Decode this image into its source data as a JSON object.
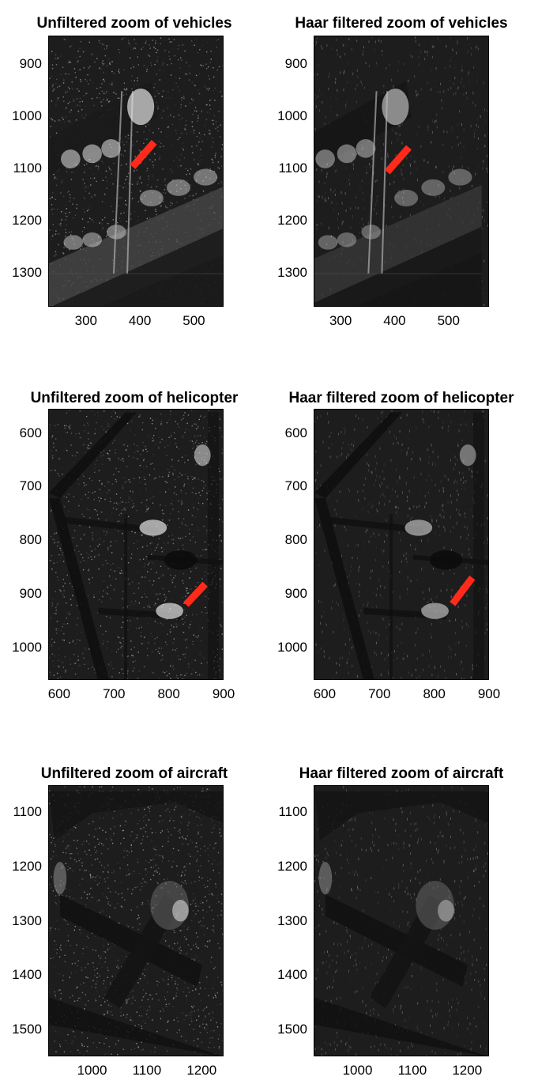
{
  "figure": {
    "panels": [
      {
        "id": "vehicles-unfiltered",
        "title": "Unfiltered zoom of vehicles",
        "filtered": false,
        "scene": "vehicles",
        "x_ticks": [
          "300",
          "400",
          "500"
        ],
        "y_ticks": [
          "900",
          "1000",
          "1100",
          "1200",
          "1300"
        ],
        "x_tick_values": [
          300,
          400,
          500
        ],
        "y_tick_values": [
          900,
          1000,
          1100,
          1200,
          1300
        ],
        "x_range": [
          230,
          555
        ],
        "y_range": [
          845,
          1365
        ],
        "marker": {
          "color": "#ff2a1a",
          "from": [
            385,
            1095
          ],
          "to": [
            425,
            1048
          ]
        }
      },
      {
        "id": "vehicles-haar",
        "title": "Haar filtered zoom of vehicles",
        "filtered": true,
        "scene": "vehicles",
        "x_ticks": [
          "300",
          "400",
          "500"
        ],
        "y_ticks": [
          "900",
          "1000",
          "1100",
          "1200",
          "1300"
        ],
        "x_tick_values": [
          300,
          400,
          500
        ],
        "y_tick_values": [
          900,
          1000,
          1100,
          1200,
          1300
        ],
        "x_range": [
          250,
          575
        ],
        "y_range": [
          845,
          1365
        ],
        "marker": {
          "color": "#ff2a1a",
          "from": [
            385,
            1105
          ],
          "to": [
            425,
            1058
          ]
        }
      },
      {
        "id": "helicopter-unfiltered",
        "title": "Unfiltered zoom of helicopter",
        "filtered": false,
        "scene": "helicopter",
        "x_ticks": [
          "600",
          "700",
          "800",
          "900"
        ],
        "y_ticks": [
          "600",
          "700",
          "800",
          "900",
          "1000"
        ],
        "x_tick_values": [
          600,
          700,
          800,
          900
        ],
        "y_tick_values": [
          600,
          700,
          800,
          900,
          1000
        ],
        "x_range": [
          580,
          900
        ],
        "y_range": [
          555,
          1060
        ],
        "marker": {
          "color": "#ff2a1a",
          "from": [
            830,
            918
          ],
          "to": [
            865,
            880
          ]
        }
      },
      {
        "id": "helicopter-haar",
        "title": "Haar filtered zoom of helicopter",
        "filtered": true,
        "scene": "helicopter",
        "x_ticks": [
          "600",
          "700",
          "800",
          "900"
        ],
        "y_ticks": [
          "600",
          "700",
          "800",
          "900",
          "1000"
        ],
        "x_tick_values": [
          600,
          700,
          800,
          900
        ],
        "y_tick_values": [
          600,
          700,
          800,
          900,
          1000
        ],
        "x_range": [
          580,
          900
        ],
        "y_range": [
          555,
          1060
        ],
        "marker": {
          "color": "#ff2a1a",
          "from": [
            832,
            917
          ],
          "to": [
            868,
            868
          ]
        }
      },
      {
        "id": "aircraft-unfiltered",
        "title": "Unfiltered zoom of aircraft",
        "filtered": false,
        "scene": "aircraft",
        "x_ticks": [
          "1000",
          "1100",
          "1200"
        ],
        "y_ticks": [
          "1100",
          "1200",
          "1300",
          "1400",
          "1500"
        ],
        "x_tick_values": [
          1000,
          1100,
          1200
        ],
        "y_tick_values": [
          1100,
          1200,
          1300,
          1400,
          1500
        ],
        "x_range": [
          920,
          1240
        ],
        "y_range": [
          1050,
          1550
        ],
        "marker": null
      },
      {
        "id": "aircraft-haar",
        "title": "Haar filtered zoom of aircraft",
        "filtered": true,
        "scene": "aircraft",
        "x_ticks": [
          "1000",
          "1100",
          "1200"
        ],
        "y_ticks": [
          "1100",
          "1200",
          "1300",
          "1400",
          "1500"
        ],
        "x_tick_values": [
          1000,
          1100,
          1200
        ],
        "y_tick_values": [
          1100,
          1200,
          1300,
          1400,
          1500
        ],
        "x_range": [
          920,
          1240
        ],
        "y_range": [
          1050,
          1550
        ],
        "marker": null
      }
    ]
  }
}
